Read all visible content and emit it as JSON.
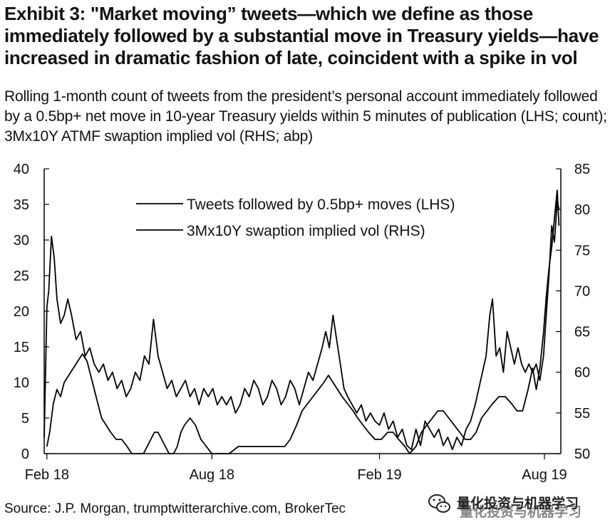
{
  "exhibit": {
    "title": "Exhibit 3: \"Market moving” tweets—which we define as those immediately followed by a substantial move in Treasury yields—have increased in dramatic fashion of late, coincident with a spike in vol",
    "subtitle": "Rolling 1-month count of tweets from the president’s personal account immediately followed by a 0.5bp+ net move in 10-year Treasury yields within 5 minutes of publication (LHS; count); 3Mx10Y ATMF swaption implied vol (RHS; abp)",
    "source": "Source: J.P. Morgan, trumptwitterarchive.com, BrokerTec"
  },
  "watermark": {
    "text": "量化投资与机器学习",
    "icon": "wechat-icon"
  },
  "colors": {
    "line": "#000000",
    "text": "#111111",
    "background": "#ffffff"
  },
  "chart_data": {
    "type": "line",
    "x_ticks": [
      "Feb 18",
      "Aug 18",
      "Feb 19",
      "Aug 19"
    ],
    "x_tick_dates": [
      "2018-02-01",
      "2018-08-01",
      "2019-02-01",
      "2019-08-01"
    ],
    "x_range": [
      "2018-01-29",
      "2019-08-19"
    ],
    "y_left": {
      "range": [
        0,
        40
      ],
      "ticks": [
        0,
        5,
        10,
        15,
        20,
        25,
        30,
        35,
        40
      ]
    },
    "y_right": {
      "range": [
        50,
        85
      ],
      "ticks": [
        50,
        55,
        60,
        65,
        70,
        75,
        80,
        85
      ]
    },
    "grid": false,
    "legend_position": "top-center",
    "series": [
      {
        "name": "Tweets followed by 0.5bp+ moves (LHS)",
        "axis": "left",
        "style": "solid",
        "points": [
          [
            "2018-02-01",
            1
          ],
          [
            "2018-02-04",
            3
          ],
          [
            "2018-02-08",
            7
          ],
          [
            "2018-02-12",
            9
          ],
          [
            "2018-02-16",
            8
          ],
          [
            "2018-02-20",
            10
          ],
          [
            "2018-02-25",
            11
          ],
          [
            "2018-03-02",
            12
          ],
          [
            "2018-03-07",
            13
          ],
          [
            "2018-03-12",
            14
          ],
          [
            "2018-03-17",
            13
          ],
          [
            "2018-03-21",
            11
          ],
          [
            "2018-03-25",
            9
          ],
          [
            "2018-03-29",
            7
          ],
          [
            "2018-04-02",
            5
          ],
          [
            "2018-04-07",
            4
          ],
          [
            "2018-04-12",
            3
          ],
          [
            "2018-04-18",
            2
          ],
          [
            "2018-04-24",
            2
          ],
          [
            "2018-04-30",
            1
          ],
          [
            "2018-05-05",
            0
          ],
          [
            "2018-05-12",
            0
          ],
          [
            "2018-05-18",
            0
          ],
          [
            "2018-05-22",
            1
          ],
          [
            "2018-05-26",
            2
          ],
          [
            "2018-05-30",
            3
          ],
          [
            "2018-06-03",
            3
          ],
          [
            "2018-06-07",
            2
          ],
          [
            "2018-06-11",
            1
          ],
          [
            "2018-06-15",
            0
          ],
          [
            "2018-06-20",
            0
          ],
          [
            "2018-06-24",
            1
          ],
          [
            "2018-06-28",
            3
          ],
          [
            "2018-07-02",
            4
          ],
          [
            "2018-07-08",
            5
          ],
          [
            "2018-07-14",
            4
          ],
          [
            "2018-07-20",
            2
          ],
          [
            "2018-07-26",
            1
          ],
          [
            "2018-08-01",
            0
          ],
          [
            "2018-08-10",
            0
          ],
          [
            "2018-08-20",
            0
          ],
          [
            "2018-08-30",
            1
          ],
          [
            "2018-09-10",
            1
          ],
          [
            "2018-09-20",
            1
          ],
          [
            "2018-09-30",
            1
          ],
          [
            "2018-10-10",
            1
          ],
          [
            "2018-10-20",
            1
          ],
          [
            "2018-10-26",
            2
          ],
          [
            "2018-11-02",
            4
          ],
          [
            "2018-11-08",
            6
          ],
          [
            "2018-11-14",
            7
          ],
          [
            "2018-11-20",
            8
          ],
          [
            "2018-11-26",
            9
          ],
          [
            "2018-12-02",
            10
          ],
          [
            "2018-12-07",
            11
          ],
          [
            "2018-12-12",
            10
          ],
          [
            "2018-12-17",
            9
          ],
          [
            "2018-12-22",
            8
          ],
          [
            "2018-12-28",
            7
          ],
          [
            "2019-01-03",
            6
          ],
          [
            "2019-01-08",
            5
          ],
          [
            "2019-01-14",
            4
          ],
          [
            "2019-01-20",
            3
          ],
          [
            "2019-01-27",
            2
          ],
          [
            "2019-02-03",
            2
          ],
          [
            "2019-02-10",
            3
          ],
          [
            "2019-02-16",
            3
          ],
          [
            "2019-02-22",
            2
          ],
          [
            "2019-03-01",
            1
          ],
          [
            "2019-03-06",
            0
          ],
          [
            "2019-03-13",
            1
          ],
          [
            "2019-03-19",
            3
          ],
          [
            "2019-03-25",
            4
          ],
          [
            "2019-03-31",
            5
          ],
          [
            "2019-04-06",
            6
          ],
          [
            "2019-04-12",
            6
          ],
          [
            "2019-04-18",
            5
          ],
          [
            "2019-04-24",
            4
          ],
          [
            "2019-04-30",
            3
          ],
          [
            "2019-05-06",
            2
          ],
          [
            "2019-05-12",
            2
          ],
          [
            "2019-05-18",
            3
          ],
          [
            "2019-05-24",
            5
          ],
          [
            "2019-05-30",
            6
          ],
          [
            "2019-06-05",
            7
          ],
          [
            "2019-06-12",
            8
          ],
          [
            "2019-06-19",
            8
          ],
          [
            "2019-06-26",
            7
          ],
          [
            "2019-07-02",
            6
          ],
          [
            "2019-07-08",
            6
          ],
          [
            "2019-07-14",
            9
          ],
          [
            "2019-07-19",
            12
          ],
          [
            "2019-07-23",
            9
          ],
          [
            "2019-07-27",
            12
          ],
          [
            "2019-07-31",
            17
          ],
          [
            "2019-08-03",
            22
          ],
          [
            "2019-08-06",
            26
          ],
          [
            "2019-08-09",
            29
          ],
          [
            "2019-08-12",
            33
          ],
          [
            "2019-08-15",
            37
          ],
          [
            "2019-08-17",
            32
          ]
        ]
      },
      {
        "name": "3Mx10Y swaption implied vol (RHS)",
        "axis": "right",
        "style": "solid",
        "points": [
          [
            "2018-01-29",
            52
          ],
          [
            "2018-02-01",
            68
          ],
          [
            "2018-02-03",
            70
          ],
          [
            "2018-02-06",
            76.7
          ],
          [
            "2018-02-09",
            74
          ],
          [
            "2018-02-12",
            69
          ],
          [
            "2018-02-16",
            66
          ],
          [
            "2018-02-20",
            67
          ],
          [
            "2018-02-24",
            69
          ],
          [
            "2018-02-28",
            67
          ],
          [
            "2018-03-05",
            64
          ],
          [
            "2018-03-10",
            65
          ],
          [
            "2018-03-15",
            62
          ],
          [
            "2018-03-20",
            63
          ],
          [
            "2018-03-25",
            61
          ],
          [
            "2018-03-30",
            60
          ],
          [
            "2018-04-04",
            61
          ],
          [
            "2018-04-09",
            59
          ],
          [
            "2018-04-14",
            60
          ],
          [
            "2018-04-19",
            58
          ],
          [
            "2018-04-24",
            59
          ],
          [
            "2018-04-29",
            57
          ],
          [
            "2018-05-04",
            58
          ],
          [
            "2018-05-09",
            60
          ],
          [
            "2018-05-14",
            59
          ],
          [
            "2018-05-19",
            62
          ],
          [
            "2018-05-24",
            61
          ],
          [
            "2018-05-29",
            66.5
          ],
          [
            "2018-06-03",
            62
          ],
          [
            "2018-06-08",
            60
          ],
          [
            "2018-06-13",
            58
          ],
          [
            "2018-06-18",
            59
          ],
          [
            "2018-06-23",
            57
          ],
          [
            "2018-06-28",
            58
          ],
          [
            "2018-07-03",
            59
          ],
          [
            "2018-07-08",
            57
          ],
          [
            "2018-07-13",
            58
          ],
          [
            "2018-07-18",
            56
          ],
          [
            "2018-07-23",
            58
          ],
          [
            "2018-07-28",
            57
          ],
          [
            "2018-08-02",
            58
          ],
          [
            "2018-08-07",
            56
          ],
          [
            "2018-08-12",
            57
          ],
          [
            "2018-08-17",
            56
          ],
          [
            "2018-08-22",
            57
          ],
          [
            "2018-08-27",
            55
          ],
          [
            "2018-09-01",
            56
          ],
          [
            "2018-09-06",
            58
          ],
          [
            "2018-09-11",
            57
          ],
          [
            "2018-09-16",
            59
          ],
          [
            "2018-09-21",
            58
          ],
          [
            "2018-09-26",
            56
          ],
          [
            "2018-10-01",
            57
          ],
          [
            "2018-10-06",
            59
          ],
          [
            "2018-10-11",
            58
          ],
          [
            "2018-10-16",
            56
          ],
          [
            "2018-10-21",
            57
          ],
          [
            "2018-10-26",
            59
          ],
          [
            "2018-10-31",
            58
          ],
          [
            "2018-11-05",
            56
          ],
          [
            "2018-11-10",
            58
          ],
          [
            "2018-11-15",
            60
          ],
          [
            "2018-11-20",
            59
          ],
          [
            "2018-11-25",
            61
          ],
          [
            "2018-11-30",
            63
          ],
          [
            "2018-12-04",
            65
          ],
          [
            "2018-12-08",
            63
          ],
          [
            "2018-12-12",
            67
          ],
          [
            "2018-12-16",
            64
          ],
          [
            "2018-12-20",
            61
          ],
          [
            "2018-12-24",
            58
          ],
          [
            "2018-12-28",
            57
          ],
          [
            "2019-01-02",
            56
          ],
          [
            "2019-01-07",
            55
          ],
          [
            "2019-01-12",
            56
          ],
          [
            "2019-01-17",
            54
          ],
          [
            "2019-01-22",
            55
          ],
          [
            "2019-01-27",
            54
          ],
          [
            "2019-02-01",
            53.5
          ],
          [
            "2019-02-06",
            55
          ],
          [
            "2019-02-11",
            53
          ],
          [
            "2019-02-16",
            54
          ],
          [
            "2019-02-21",
            52
          ],
          [
            "2019-02-26",
            53
          ],
          [
            "2019-03-03",
            51
          ],
          [
            "2019-03-08",
            50.5
          ],
          [
            "2019-03-13",
            53
          ],
          [
            "2019-03-18",
            51
          ],
          [
            "2019-03-23",
            54
          ],
          [
            "2019-03-28",
            53
          ],
          [
            "2019-04-02",
            52
          ],
          [
            "2019-04-07",
            53
          ],
          [
            "2019-04-12",
            51
          ],
          [
            "2019-04-17",
            52
          ],
          [
            "2019-04-22",
            50.5
          ],
          [
            "2019-04-27",
            52
          ],
          [
            "2019-05-02",
            51
          ],
          [
            "2019-05-07",
            53
          ],
          [
            "2019-05-12",
            54
          ],
          [
            "2019-05-17",
            56
          ],
          [
            "2019-05-21",
            58
          ],
          [
            "2019-05-25",
            60
          ],
          [
            "2019-05-29",
            62
          ],
          [
            "2019-06-02",
            67
          ],
          [
            "2019-06-05",
            69
          ],
          [
            "2019-06-09",
            62
          ],
          [
            "2019-06-13",
            63
          ],
          [
            "2019-06-17",
            60
          ],
          [
            "2019-06-21",
            65
          ],
          [
            "2019-06-25",
            63
          ],
          [
            "2019-06-29",
            61
          ],
          [
            "2019-07-03",
            63
          ],
          [
            "2019-07-07",
            61
          ],
          [
            "2019-07-11",
            60
          ],
          [
            "2019-07-15",
            61
          ],
          [
            "2019-07-19",
            60
          ],
          [
            "2019-07-23",
            61
          ],
          [
            "2019-07-27",
            59
          ],
          [
            "2019-07-31",
            62
          ],
          [
            "2019-08-03",
            67
          ],
          [
            "2019-08-06",
            72
          ],
          [
            "2019-08-09",
            78
          ],
          [
            "2019-08-12",
            76
          ],
          [
            "2019-08-15",
            81
          ],
          [
            "2019-08-17",
            80
          ]
        ]
      }
    ]
  }
}
